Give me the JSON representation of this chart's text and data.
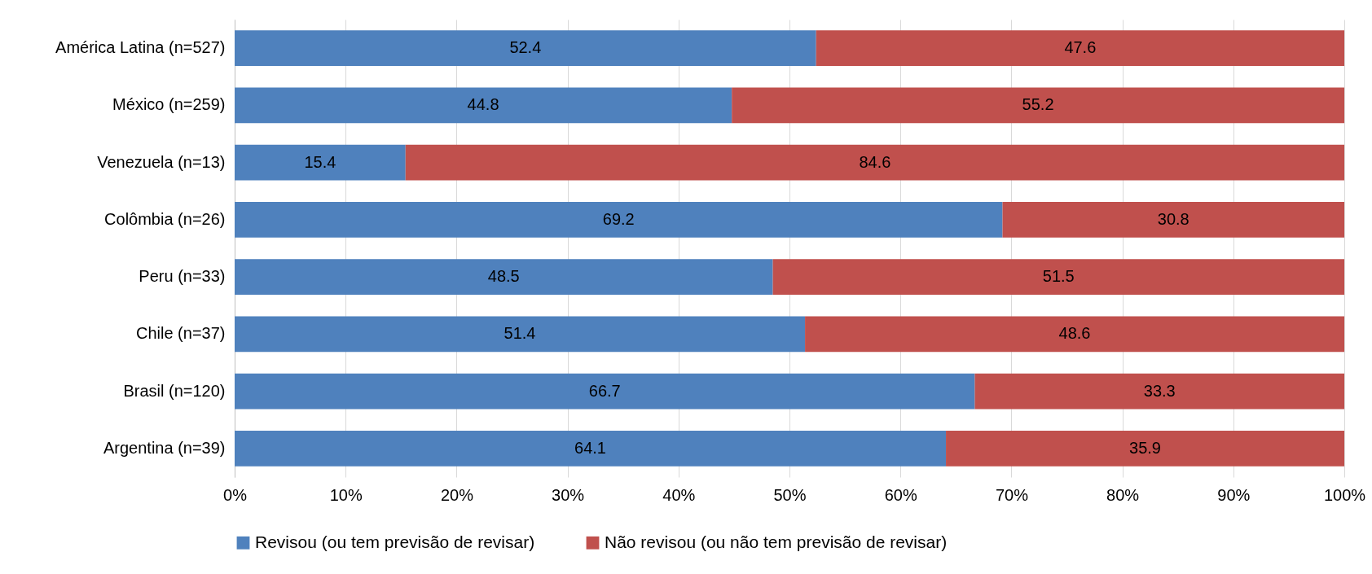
{
  "chart_data": {
    "type": "bar",
    "orientation": "horizontal",
    "stacked": true,
    "categories": [
      "América Latina (n=527)",
      "México (n=259)",
      "Venezuela (n=13)",
      "Colômbia (n=26)",
      "Peru (n=33)",
      "Chile (n=37)",
      "Brasil (n=120)",
      "Argentina (n=39)"
    ],
    "series": [
      {
        "name": "Revisou (ou tem previsão de revisar)",
        "color": "#4f81bd",
        "values": [
          52.4,
          44.8,
          15.4,
          69.2,
          48.5,
          51.4,
          66.7,
          64.1
        ]
      },
      {
        "name": "Não revisou (ou não tem previsão de revisar)",
        "color": "#c0504d",
        "values": [
          47.6,
          55.2,
          84.6,
          30.8,
          51.5,
          48.6,
          33.3,
          35.9
        ]
      }
    ],
    "xlim": [
      0,
      100
    ],
    "xticks": [
      {
        "value": 0,
        "label": "0%"
      },
      {
        "value": 10,
        "label": "10%"
      },
      {
        "value": 20,
        "label": "20%"
      },
      {
        "value": 30,
        "label": "30%"
      },
      {
        "value": 40,
        "label": "40%"
      },
      {
        "value": 50,
        "label": "50%"
      },
      {
        "value": 60,
        "label": "60%"
      },
      {
        "value": 70,
        "label": "70%"
      },
      {
        "value": 80,
        "label": "80%"
      },
      {
        "value": 90,
        "label": "90%"
      },
      {
        "value": 100,
        "label": "100%"
      }
    ],
    "data_labels": true,
    "grid": "x",
    "legend": "bottom"
  }
}
